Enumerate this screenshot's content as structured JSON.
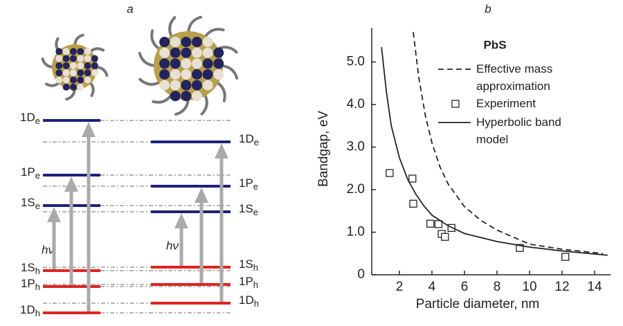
{
  "panel_a": {
    "label": "a",
    "photon": "hν",
    "left_levels": [
      {
        "text": "1D",
        "sub": "e"
      },
      {
        "text": "1P",
        "sub": "e"
      },
      {
        "text": "1S",
        "sub": "e"
      },
      {
        "text": "1S",
        "sub": "h"
      },
      {
        "text": "1P",
        "sub": "h"
      },
      {
        "text": "1D",
        "sub": "h"
      }
    ],
    "right_levels": [
      {
        "text": "1D",
        "sub": "e"
      },
      {
        "text": "1P",
        "sub": "e"
      },
      {
        "text": "1S",
        "sub": "e"
      },
      {
        "text": "1S",
        "sub": "h"
      },
      {
        "text": "1P",
        "sub": "h"
      },
      {
        "text": "1D",
        "sub": "h"
      }
    ]
  },
  "chart_data": {
    "type": "line",
    "label": "b",
    "title": "PbS",
    "xlabel": "Particle diameter, nm",
    "ylabel": "Bandgap, eV",
    "xlim": [
      0,
      15
    ],
    "ylim": [
      0,
      5.8
    ],
    "xticks": [
      2,
      4,
      6,
      8,
      10,
      12,
      14
    ],
    "yticks": [
      0,
      {
        "value": 1,
        "label": "1.0"
      },
      {
        "value": 2,
        "label": "2.0"
      },
      {
        "value": 3,
        "label": "3.0"
      },
      {
        "value": 4,
        "label": "4.0"
      },
      {
        "value": 5,
        "label": "5.0"
      }
    ],
    "series": [
      {
        "name": "Effective mass approximation",
        "color": "#222",
        "style": "dashed",
        "x": [
          2.85,
          3.2,
          3.6,
          4,
          4.5,
          5,
          6,
          7,
          8,
          10,
          12,
          14.5
        ],
        "values": [
          5.7,
          4.61,
          3.73,
          3.1,
          2.53,
          2.13,
          1.6,
          1.28,
          1.05,
          0.72,
          0.6,
          0.5
        ]
      },
      {
        "name": "Experiment",
        "color": "#222",
        "style": "marker",
        "x": [
          1.4,
          2.8,
          2.85,
          3.9,
          4.4,
          4.6,
          4.8,
          5.2,
          9.4,
          12.2
        ],
        "values": [
          2.39,
          2.26,
          1.67,
          1.2,
          1.19,
          0.96,
          0.89,
          1.1,
          0.63,
          0.42
        ]
      },
      {
        "name": "Hyperbolic band model",
        "color": "#222",
        "style": "solid",
        "x": [
          0.9,
          1.2,
          1.5,
          2,
          2.5,
          3,
          3.5,
          4,
          5,
          6,
          8,
          10,
          12,
          14.8
        ],
        "values": [
          5.35,
          4.3,
          3.5,
          2.75,
          2.25,
          1.9,
          1.62,
          1.4,
          1.15,
          0.97,
          0.78,
          0.65,
          0.56,
          0.46
        ]
      }
    ]
  }
}
